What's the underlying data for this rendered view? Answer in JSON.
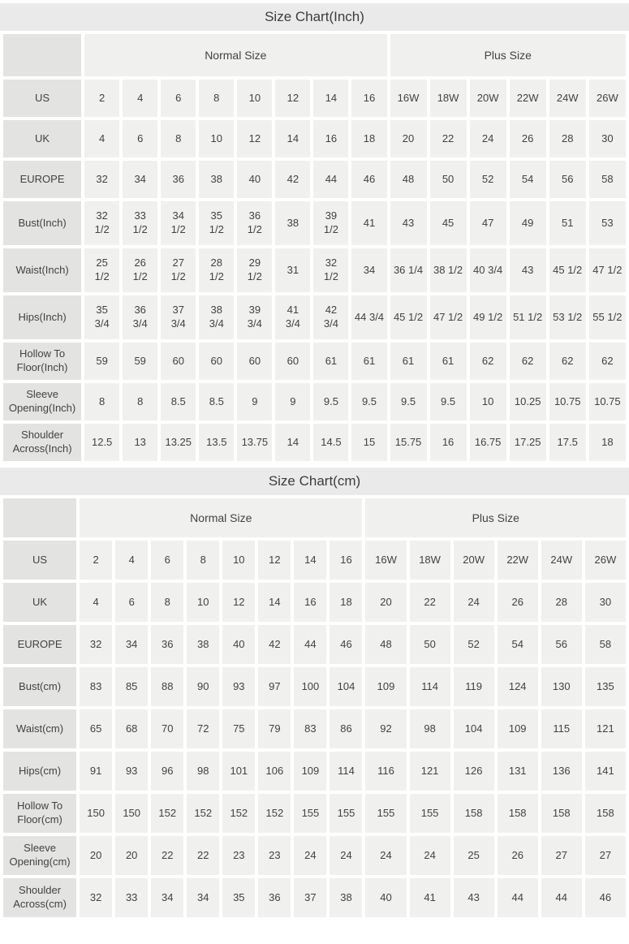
{
  "colors": {
    "title_bar_bg": "#eaeaea",
    "cell_bg": "#f0f0ef",
    "label_cell_bg": "#e3e3e1",
    "gap": "#ffffff",
    "text": "#424242"
  },
  "chart_data": [
    {
      "type": "table",
      "title": "Size Chart(Inch)",
      "group_headers": [
        {
          "label": "Normal Size",
          "span": 8
        },
        {
          "label": "Plus Size",
          "span": 6
        }
      ],
      "rows": [
        {
          "label": "US",
          "values": [
            "2",
            "4",
            "6",
            "8",
            "10",
            "12",
            "14",
            "16",
            "16W",
            "18W",
            "20W",
            "22W",
            "24W",
            "26W"
          ]
        },
        {
          "label": "UK",
          "values": [
            "4",
            "6",
            "8",
            "10",
            "12",
            "14",
            "16",
            "18",
            "20",
            "22",
            "24",
            "26",
            "28",
            "30"
          ]
        },
        {
          "label": "EUROPE",
          "values": [
            "32",
            "34",
            "36",
            "38",
            "40",
            "42",
            "44",
            "46",
            "48",
            "50",
            "52",
            "54",
            "56",
            "58"
          ]
        },
        {
          "label": "Bust(Inch)",
          "values": [
            "32\n1/2",
            "33\n1/2",
            "34\n1/2",
            "35\n1/2",
            "36\n1/2",
            "38",
            "39\n1/2",
            "41",
            "43",
            "45",
            "47",
            "49",
            "51",
            "53"
          ]
        },
        {
          "label": "Waist(Inch)",
          "values": [
            "25\n1/2",
            "26\n1/2",
            "27\n1/2",
            "28\n1/2",
            "29\n1/2",
            "31",
            "32\n1/2",
            "34",
            "36 1/4",
            "38 1/2",
            "40 3/4",
            "43",
            "45 1/2",
            "47 1/2"
          ]
        },
        {
          "label": "Hips(Inch)",
          "values": [
            "35\n3/4",
            "36\n3/4",
            "37\n3/4",
            "38\n3/4",
            "39\n3/4",
            "41\n3/4",
            "42\n3/4",
            "44 3/4",
            "45 1/2",
            "47 1/2",
            "49 1/2",
            "51 1/2",
            "53 1/2",
            "55 1/2"
          ]
        },
        {
          "label": "Hollow To\nFloor(Inch)",
          "values": [
            "59",
            "59",
            "60",
            "60",
            "60",
            "60",
            "61",
            "61",
            "61",
            "61",
            "62",
            "62",
            "62",
            "62"
          ]
        },
        {
          "label": "Sleeve\nOpening(Inch)",
          "values": [
            "8",
            "8",
            "8.5",
            "8.5",
            "9",
            "9",
            "9.5",
            "9.5",
            "9.5",
            "9.5",
            "10",
            "10.25",
            "10.75",
            "10.75"
          ]
        },
        {
          "label": "Shoulder\nAcross(Inch)",
          "values": [
            "12.5",
            "13",
            "13.25",
            "13.5",
            "13.75",
            "14",
            "14.5",
            "15",
            "15.75",
            "16",
            "16.75",
            "17.25",
            "17.5",
            "18"
          ]
        }
      ]
    },
    {
      "type": "table",
      "title": "Size Chart(cm)",
      "group_headers": [
        {
          "label": "Normal Size",
          "span": 8
        },
        {
          "label": "Plus Size",
          "span": 6
        }
      ],
      "rows": [
        {
          "label": "US",
          "values": [
            "2",
            "4",
            "6",
            "8",
            "10",
            "12",
            "14",
            "16",
            "16W",
            "18W",
            "20W",
            "22W",
            "24W",
            "26W"
          ]
        },
        {
          "label": "UK",
          "values": [
            "4",
            "6",
            "8",
            "10",
            "12",
            "14",
            "16",
            "18",
            "20",
            "22",
            "24",
            "26",
            "28",
            "30"
          ]
        },
        {
          "label": "EUROPE",
          "values": [
            "32",
            "34",
            "36",
            "38",
            "40",
            "42",
            "44",
            "46",
            "48",
            "50",
            "52",
            "54",
            "56",
            "58"
          ]
        },
        {
          "label": "Bust(cm)",
          "values": [
            "83",
            "85",
            "88",
            "90",
            "93",
            "97",
            "100",
            "104",
            "109",
            "114",
            "119",
            "124",
            "130",
            "135"
          ]
        },
        {
          "label": "Waist(cm)",
          "values": [
            "65",
            "68",
            "70",
            "72",
            "75",
            "79",
            "83",
            "86",
            "92",
            "98",
            "104",
            "109",
            "115",
            "121"
          ]
        },
        {
          "label": "Hips(cm)",
          "values": [
            "91",
            "93",
            "96",
            "98",
            "101",
            "106",
            "109",
            "114",
            "116",
            "121",
            "126",
            "131",
            "136",
            "141"
          ]
        },
        {
          "label": "Hollow To\nFloor(cm)",
          "values": [
            "150",
            "150",
            "152",
            "152",
            "152",
            "152",
            "155",
            "155",
            "155",
            "155",
            "158",
            "158",
            "158",
            "158"
          ]
        },
        {
          "label": "Sleeve\nOpening(cm)",
          "values": [
            "20",
            "20",
            "22",
            "22",
            "23",
            "23",
            "24",
            "24",
            "24",
            "24",
            "25",
            "26",
            "27",
            "27"
          ]
        },
        {
          "label": "Shoulder\nAcross(cm)",
          "values": [
            "32",
            "33",
            "34",
            "34",
            "35",
            "36",
            "37",
            "38",
            "40",
            "41",
            "43",
            "44",
            "44",
            "46"
          ]
        }
      ]
    }
  ]
}
